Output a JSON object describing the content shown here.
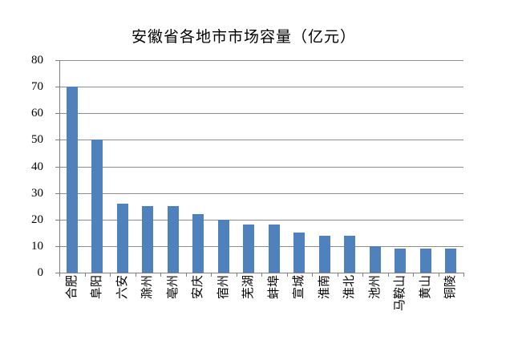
{
  "chart_data": {
    "type": "bar",
    "title": "安徽省各地市市场容量（亿元）",
    "categories": [
      "合肥",
      "阜阳",
      "六安",
      "滁州",
      "亳州",
      "安庆",
      "宿州",
      "芜湖",
      "蚌埠",
      "宣城",
      "淮南",
      "淮北",
      "池州",
      "马鞍山",
      "黄山",
      "铜陵"
    ],
    "values": [
      70,
      50,
      26,
      25,
      25,
      22,
      20,
      18,
      18,
      15,
      14,
      14,
      10,
      9,
      9,
      9
    ],
    "xlabel": "",
    "ylabel": "",
    "ylim": [
      0,
      80
    ],
    "yticks": [
      0,
      10,
      20,
      30,
      40,
      50,
      60,
      70,
      80
    ],
    "grid": true,
    "legend": "none",
    "x_label_rotation_degrees": 90,
    "colors": {
      "bar": "#4F81BD",
      "gridline": "#8C8C8C",
      "axis": "#7F7F7F",
      "text": "#000000",
      "background": "#FFFFFF"
    }
  }
}
